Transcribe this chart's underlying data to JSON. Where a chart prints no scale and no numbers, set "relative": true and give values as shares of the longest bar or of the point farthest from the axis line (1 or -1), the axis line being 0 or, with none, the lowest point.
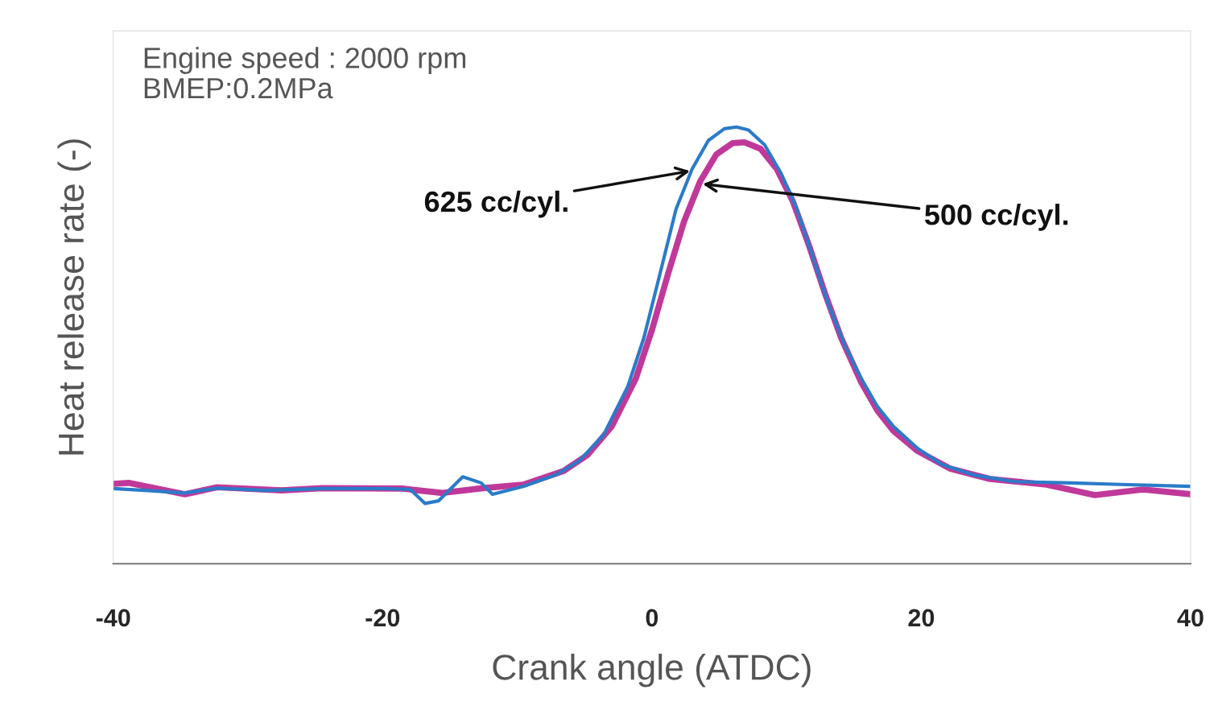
{
  "chart_data": {
    "type": "line",
    "relative": true,
    "xlabel": "Crank angle (ATDC)",
    "ylabel": "Heat release rate (-)",
    "xlim": [
      -40,
      40
    ],
    "xticks": [
      -40,
      -20,
      0,
      20,
      40
    ],
    "tick_labels": "x",
    "grid": false,
    "legend": false,
    "x": [
      -40.0,
      -37.67,
      -34.68,
      -32.29,
      -28.7,
      -24.51,
      -19.73,
      -17.94,
      -16.86,
      -15.84,
      -14.05,
      -12.68,
      -11.84,
      -9.57,
      -7.17,
      -5.38,
      -3.59,
      -1.79,
      -0.6,
      0.6,
      1.79,
      2.99,
      4.19,
      5.38,
      6.28,
      7.17,
      8.37,
      9.57,
      10.76,
      11.96,
      13.15,
      14.35,
      15.55,
      16.74,
      17.94,
      19.73,
      21.52,
      23.92,
      26.91,
      31.09,
      35.28,
      40.0
    ],
    "series": [
      {
        "color": "#c0399a",
        "x": [
          -40,
          -38.86,
          -34.68,
          -32.29,
          -27.5,
          -24.51,
          -18.54,
          -15.55,
          -12.56,
          -9.57,
          -6.58,
          -4.78,
          -2.99,
          -1.2,
          0,
          1.2,
          2.39,
          3.59,
          4.78,
          5.98,
          6.88,
          8.07,
          9.27,
          10.46,
          11.66,
          12.86,
          14.05,
          15.55,
          16.74,
          17.94,
          19.73,
          22.12,
          25.11,
          29.3,
          32.89,
          36.47,
          40
        ],
        "values": [
          0.183,
          0.185,
          0.159,
          0.175,
          0.168,
          0.173,
          0.172,
          0.162,
          0.173,
          0.181,
          0.212,
          0.249,
          0.314,
          0.424,
          0.535,
          0.664,
          0.784,
          0.876,
          0.937,
          0.963,
          0.965,
          0.95,
          0.904,
          0.83,
          0.729,
          0.618,
          0.517,
          0.415,
          0.351,
          0.304,
          0.258,
          0.218,
          0.194,
          0.181,
          0.157,
          0.17,
          0.159
        ]
      },
      {
        "color": "#2b7bc8",
        "values": [
          0.172,
          0.168,
          0.162,
          0.173,
          0.168,
          0.172,
          0.172,
          0.17,
          0.138,
          0.144,
          0.199,
          0.185,
          0.159,
          0.177,
          0.203,
          0.236,
          0.295,
          0.406,
          0.517,
          0.664,
          0.812,
          0.904,
          0.969,
          0.996,
          1,
          0.993,
          0.959,
          0.895,
          0.812,
          0.701,
          0.59,
          0.498,
          0.424,
          0.36,
          0.314,
          0.264,
          0.227,
          0.203,
          0.188,
          0.185,
          0.181,
          0.177
        ]
      }
    ],
    "annotations": [
      "Engine speed : 2000 rpm\nBMEP:0.2MPa",
      {
        "text": "625 cc/cyl.",
        "x": 3.0,
        "y": 0.9
      },
      {
        "text": "500 cc/cyl.",
        "x": 3.6,
        "y": 0.87
      }
    ]
  }
}
